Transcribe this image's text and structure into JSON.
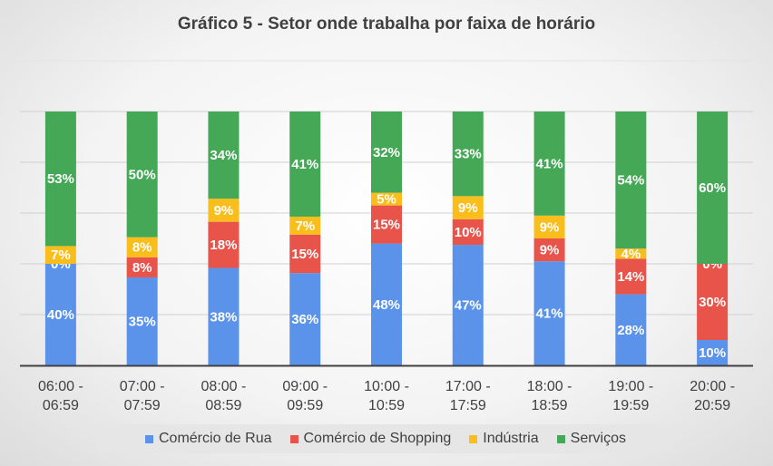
{
  "colors": {
    "comercio_rua": "#5B93EB",
    "comercio_shopping": "#E8534A",
    "industria": "#F9BE1C",
    "servicos": "#45A857"
  },
  "chart_data": {
    "type": "bar",
    "stacked": true,
    "title": "Gráfico 5 - Setor onde trabalha por faixa de horário",
    "xlabel": "",
    "ylabel": "",
    "ylim": [
      0,
      100
    ],
    "grid": true,
    "legend": "bottom",
    "categories": [
      [
        "06:00 -",
        "06:59"
      ],
      [
        "07:00 -",
        "07:59"
      ],
      [
        "08:00 -",
        "08:59"
      ],
      [
        "09:00 -",
        "09:59"
      ],
      [
        "10:00 -",
        "10:59"
      ],
      [
        "17:00 -",
        "17:59"
      ],
      [
        "18:00 -",
        "18:59"
      ],
      [
        "19:00 -",
        "19:59"
      ],
      [
        "20:00 -",
        "20:59"
      ]
    ],
    "series": [
      {
        "name": "Comércio de Rua",
        "color_key": "comercio_rua",
        "values": [
          40,
          35,
          38,
          36,
          48,
          47,
          41,
          28,
          10
        ],
        "labels": [
          "40%",
          "35%",
          "38%",
          "36%",
          "48%",
          "47%",
          "41%",
          "28%",
          "10%"
        ]
      },
      {
        "name": "Comércio de Shopping",
        "color_key": "comercio_shopping",
        "values": [
          0,
          8,
          18,
          15,
          15,
          10,
          9,
          14,
          30
        ],
        "labels": [
          "0%",
          "8%",
          "18%",
          "15%",
          "15%",
          "10%",
          "9%",
          "14%",
          "30%"
        ]
      },
      {
        "name": "Indústria",
        "color_key": "industria",
        "values": [
          7,
          8,
          9,
          7,
          5,
          9,
          9,
          4,
          0
        ],
        "labels": [
          "7%",
          "8%",
          "9%",
          "7%",
          "5%",
          "9%",
          "9%",
          "4%",
          "0%"
        ]
      },
      {
        "name": "Serviços",
        "color_key": "servicos",
        "values": [
          53,
          50,
          34,
          41,
          32,
          33,
          41,
          54,
          60
        ],
        "labels": [
          "53%",
          "50%",
          "34%",
          "41%",
          "32%",
          "33%",
          "41%",
          "54%",
          "60%"
        ]
      }
    ]
  }
}
